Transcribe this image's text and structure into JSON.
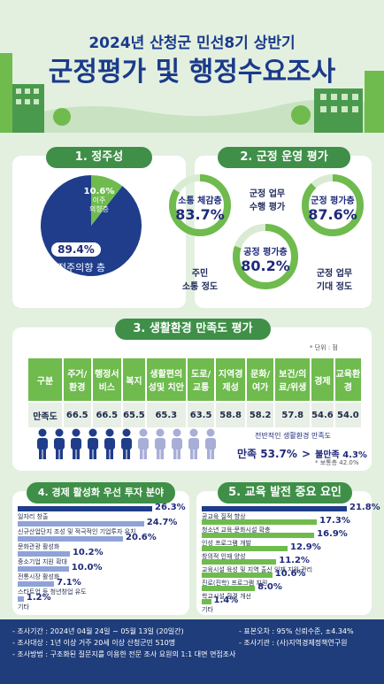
{
  "header": {
    "subtitle": "2024년 산청군 민선8기 상반기",
    "title": "군정평가 및 행정수요조사"
  },
  "section1": {
    "heading": "1. 정주성",
    "intent_pct": "89.4%",
    "intent_label": "정주의향 층",
    "move_pct": "10.6%",
    "move_label1": "이주",
    "move_label2": "의향층",
    "chart_data": {
      "type": "pie",
      "categories": [
        "정주의향 층",
        "이주 의향층"
      ],
      "values": [
        89.4,
        10.6
      ],
      "colors": [
        "#1f3d8a",
        "#6fbb4e"
      ]
    }
  },
  "section2": {
    "heading": "2. 군정 운영 평가",
    "rings": [
      {
        "label": "소통 체감층",
        "value": "83.7%",
        "pct": 83.7
      },
      {
        "label": "공정 평가층",
        "value": "80.2%",
        "pct": 80.2
      },
      {
        "label": "군정 평가층",
        "value": "87.6%",
        "pct": 87.6
      }
    ],
    "cap_top1": "군정 업무",
    "cap_top2": "수행 평가",
    "cap_left1": "주민",
    "cap_left2": "소통 정도",
    "cap_right1": "군정 업무",
    "cap_right2": "기대 정도"
  },
  "section3": {
    "heading": "3. 생활환경 만족도 평가",
    "unit": "* 단위 : 점",
    "headers": [
      "구분",
      "주거/환경",
      "행정서비스",
      "복지",
      "생활편의성및 치안",
      "도로/교통",
      "지역경제성",
      "문화/여가",
      "보건/의료/위생",
      "경제",
      "교육환경"
    ],
    "values": [
      "만족도",
      "66.5",
      "66.5",
      "65.5",
      "65.3",
      "63.5",
      "58.8",
      "58.2",
      "57.8",
      "54.6",
      "54.0"
    ],
    "overall_caption": "전반적인 생활환경 만족도",
    "satisfied": "만족 53.7%",
    "arrow": ">",
    "unsatisfied": "불만족 4.3%",
    "normal": "* 보통층 42.0%",
    "people": {
      "filled": 6,
      "total": 11
    }
  },
  "section4": {
    "heading": "4. 경제 활성화 우선 투자 분야",
    "chart_data": {
      "type": "bar",
      "categories": [
        "일자리 창출",
        "신규산업단지 조성 및 적극적인 기업투자 유치",
        "문화관광 활성화",
        "중소기업 지원 확대",
        "전통시장 활성화",
        "스타트업 등 청년창업 유도",
        "기타"
      ],
      "values": [
        26.3,
        24.7,
        20.6,
        10.2,
        10.0,
        7.1,
        1.2
      ],
      "labels": [
        "26.3%",
        "24.7%",
        "20.6%",
        "10.2%",
        "10.0%",
        "7.1%",
        "1.2%"
      ]
    }
  },
  "section5": {
    "heading": "5. 교육 발전 중요 요인",
    "chart_data": {
      "type": "bar",
      "categories": [
        "공교육 질적 향상",
        "청소년 교육·문화시설 확충",
        "인성 프로그램 개발",
        "창의적 인재 양성",
        "교육시설 육성 및 지역 출신 인재 지원·관리",
        "진로(진학) 프로그램 지원",
        "학교시설 환경 개선",
        "기타"
      ],
      "values": [
        21.8,
        17.3,
        16.9,
        12.9,
        11.2,
        10.6,
        8.0,
        1.4
      ],
      "labels": [
        "21.8%",
        "17.3%",
        "16.9%",
        "12.9%",
        "11.2%",
        "10.6%",
        "8.0%",
        "1.4%"
      ]
    }
  },
  "footer": {
    "period": "- 조사기간 : 2024년 04월 24일 ~ 05월 13일 (20일간)",
    "target": "- 조사대상 : 1년 이상 거주 20세 이상 산청군민 510명",
    "method": "- 조사방법 :  구조화된 질문지를 이용한 전문 조사 요원의 1:1 대면 면접조사",
    "error": "- 표본오차 : 95% 신뢰수준, ±4.34%",
    "org": "- 조사기관 : (사)지역경제정책연구원"
  }
}
